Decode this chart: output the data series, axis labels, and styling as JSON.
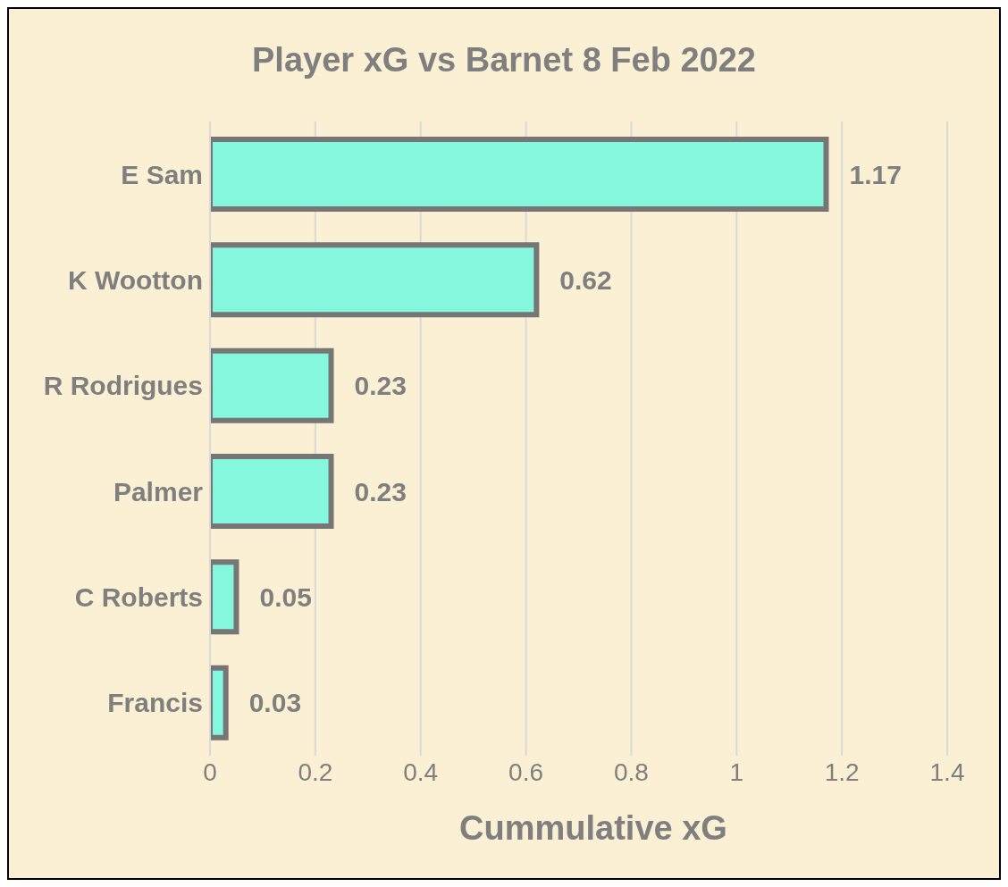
{
  "chart_data": {
    "type": "bar",
    "orientation": "horizontal",
    "title": "Player xG vs Barnet 8 Feb 2022",
    "xlabel": "Cummulative xG",
    "categories": [
      "E Sam",
      "K Wootton",
      "R Rodrigues",
      "Palmer",
      "C Roberts",
      "Francis"
    ],
    "values": [
      1.17,
      0.62,
      0.23,
      0.23,
      0.05,
      0.03
    ],
    "color": "#84f7dc",
    "xlim": [
      0,
      1.4
    ],
    "xticks": [
      0,
      0.2,
      0.4,
      0.6,
      0.8,
      1,
      1.2,
      1.4
    ],
    "grid": "x",
    "data_labels": true
  }
}
